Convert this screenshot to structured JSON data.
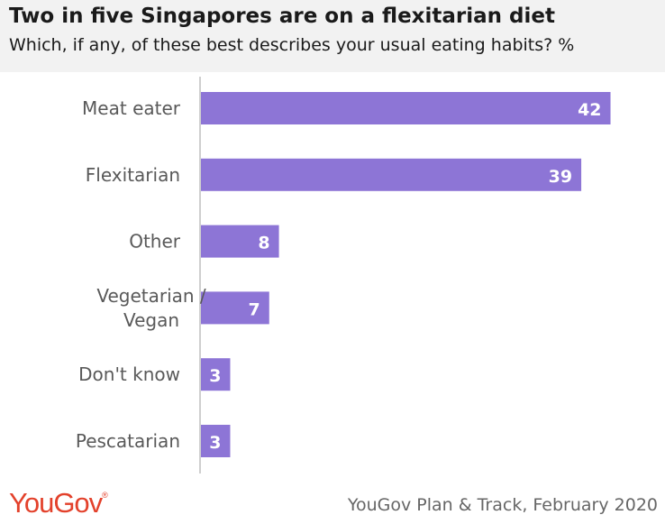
{
  "header": {
    "title": "Two in five Singapores are on a flexitarian diet",
    "subtitle": "Which, if any, of these best describes your usual eating habits? %"
  },
  "footer": {
    "logo_text": "YouGov",
    "logo_mark": "®",
    "source": "YouGov Plan & Track, February 2020"
  },
  "colors": {
    "bar": "#8d75d6",
    "logo": "#e3412b",
    "axis": "#bfbfbf"
  },
  "chart_data": {
    "type": "bar",
    "orientation": "horizontal",
    "title": "Two in five Singapores are on a flexitarian diet",
    "subtitle": "Which, if any, of these best describes your usual eating habits? %",
    "categories": [
      [
        "Meat eater"
      ],
      [
        "Flexitarian"
      ],
      [
        "Other"
      ],
      [
        "Vegetarian /",
        "Vegan"
      ],
      [
        "Don't know"
      ],
      [
        "Pescatarian"
      ]
    ],
    "values": [
      42,
      39,
      8,
      7,
      3,
      3
    ],
    "xlim": [
      0,
      45
    ],
    "grid": false,
    "data_labels": true
  }
}
